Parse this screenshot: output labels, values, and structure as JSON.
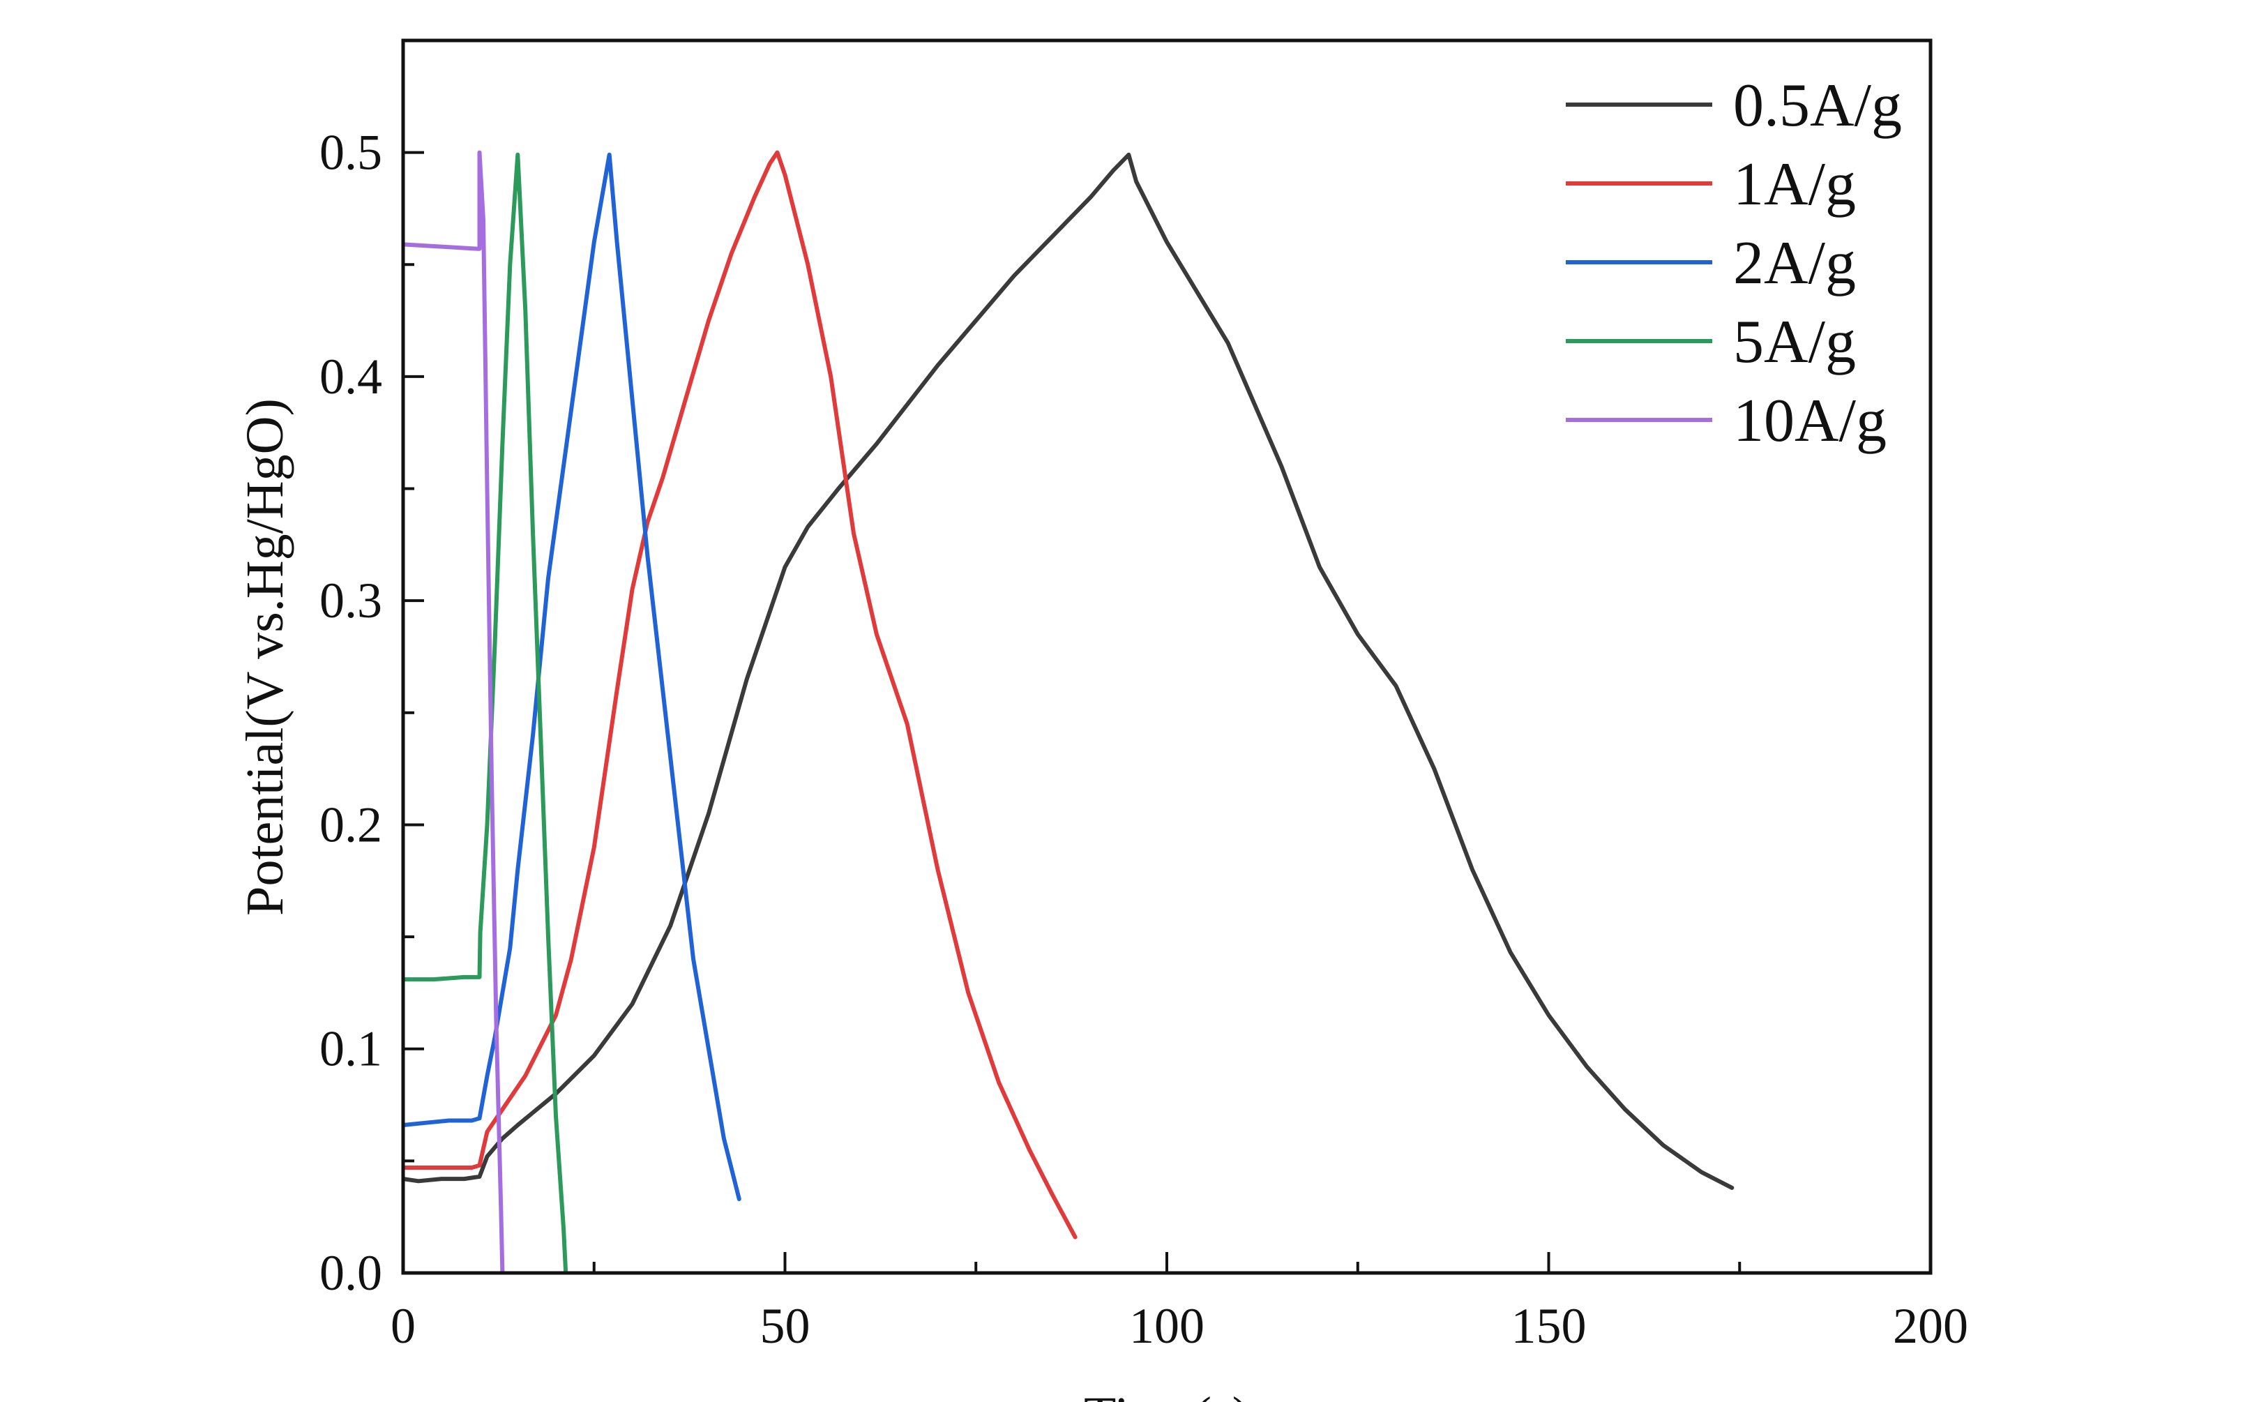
{
  "chart_data": {
    "type": "line",
    "title": "",
    "xlabel": "Time(s)",
    "ylabel": "Potential(V vs.Hg/HgO)",
    "xlim": [
      0,
      200
    ],
    "ylim": [
      0,
      0.55
    ],
    "x_ticks": [
      0,
      50,
      100,
      150,
      200
    ],
    "x_tick_labels": [
      "0",
      "50",
      "100",
      "150",
      "200"
    ],
    "y_ticks": [
      0.0,
      0.1,
      0.2,
      0.3,
      0.4,
      0.5
    ],
    "y_tick_labels": [
      "0.0",
      "0.1",
      "0.2",
      "0.3",
      "0.4",
      "0.5"
    ],
    "grid": false,
    "legend_position": "top-right",
    "series": [
      {
        "name": "0.5A/g",
        "color": "#3a3a3a",
        "points": [
          [
            0,
            0.042
          ],
          [
            2,
            0.041
          ],
          [
            5,
            0.042
          ],
          [
            8,
            0.042
          ],
          [
            10,
            0.043
          ],
          [
            11,
            0.052
          ],
          [
            13,
            0.06
          ],
          [
            15,
            0.066
          ],
          [
            20,
            0.08
          ],
          [
            25,
            0.097
          ],
          [
            30,
            0.12
          ],
          [
            35,
            0.155
          ],
          [
            40,
            0.205
          ],
          [
            45,
            0.265
          ],
          [
            50,
            0.315
          ],
          [
            53,
            0.333
          ],
          [
            57,
            0.35
          ],
          [
            62,
            0.37
          ],
          [
            70,
            0.405
          ],
          [
            80,
            0.445
          ],
          [
            90,
            0.48
          ],
          [
            93,
            0.492
          ],
          [
            95,
            0.499
          ],
          [
            96,
            0.487
          ],
          [
            100,
            0.46
          ],
          [
            108,
            0.415
          ],
          [
            115,
            0.36
          ],
          [
            120,
            0.315
          ],
          [
            125,
            0.285
          ],
          [
            130,
            0.262
          ],
          [
            135,
            0.225
          ],
          [
            140,
            0.18
          ],
          [
            145,
            0.143
          ],
          [
            150,
            0.115
          ],
          [
            155,
            0.092
          ],
          [
            160,
            0.073
          ],
          [
            165,
            0.057
          ],
          [
            170,
            0.045
          ],
          [
            174,
            0.038
          ]
        ]
      },
      {
        "name": "1A/g",
        "color": "#e03a3a",
        "points": [
          [
            0,
            0.047
          ],
          [
            3,
            0.047
          ],
          [
            6,
            0.047
          ],
          [
            9,
            0.047
          ],
          [
            10,
            0.048
          ],
          [
            11,
            0.063
          ],
          [
            13,
            0.073
          ],
          [
            16,
            0.088
          ],
          [
            20,
            0.115
          ],
          [
            22,
            0.14
          ],
          [
            25,
            0.19
          ],
          [
            28,
            0.26
          ],
          [
            30,
            0.305
          ],
          [
            32,
            0.335
          ],
          [
            34,
            0.355
          ],
          [
            37,
            0.39
          ],
          [
            40,
            0.425
          ],
          [
            43,
            0.455
          ],
          [
            46,
            0.48
          ],
          [
            48,
            0.495
          ],
          [
            49,
            0.5
          ],
          [
            50,
            0.49
          ],
          [
            53,
            0.45
          ],
          [
            56,
            0.4
          ],
          [
            59,
            0.33
          ],
          [
            62,
            0.285
          ],
          [
            66,
            0.245
          ],
          [
            70,
            0.18
          ],
          [
            74,
            0.125
          ],
          [
            78,
            0.085
          ],
          [
            82,
            0.055
          ],
          [
            85,
            0.035
          ],
          [
            88,
            0.016
          ]
        ]
      },
      {
        "name": "2A/g",
        "color": "#1f63d6",
        "points": [
          [
            0,
            0.066
          ],
          [
            3,
            0.067
          ],
          [
            6,
            0.068
          ],
          [
            9,
            0.068
          ],
          [
            10,
            0.069
          ],
          [
            11,
            0.088
          ],
          [
            12,
            0.105
          ],
          [
            13,
            0.125
          ],
          [
            14,
            0.145
          ],
          [
            15,
            0.18
          ],
          [
            17,
            0.24
          ],
          [
            19,
            0.31
          ],
          [
            21,
            0.36
          ],
          [
            23,
            0.41
          ],
          [
            25,
            0.46
          ],
          [
            27,
            0.499
          ],
          [
            28,
            0.46
          ],
          [
            30,
            0.39
          ],
          [
            32,
            0.32
          ],
          [
            34,
            0.26
          ],
          [
            36,
            0.2
          ],
          [
            38,
            0.14
          ],
          [
            40,
            0.1
          ],
          [
            42,
            0.06
          ],
          [
            44,
            0.033
          ]
        ]
      },
      {
        "name": "5A/g",
        "color": "#2c9a5a",
        "points": [
          [
            0,
            0.131
          ],
          [
            4,
            0.131
          ],
          [
            8,
            0.132
          ],
          [
            10,
            0.132
          ],
          [
            10.1,
            0.152
          ],
          [
            11,
            0.2
          ],
          [
            12,
            0.28
          ],
          [
            13,
            0.37
          ],
          [
            14,
            0.45
          ],
          [
            15,
            0.499
          ],
          [
            16,
            0.43
          ],
          [
            17,
            0.33
          ],
          [
            18,
            0.24
          ],
          [
            19,
            0.15
          ],
          [
            20,
            0.07
          ],
          [
            21,
            0.02
          ],
          [
            21.3,
            0
          ]
        ]
      },
      {
        "name": "10A/g",
        "color": "#a56ee0",
        "points": [
          [
            0,
            0.459
          ],
          [
            5,
            0.458
          ],
          [
            9.8,
            0.457
          ],
          [
            10,
            0.457
          ],
          [
            10,
            0.5
          ],
          [
            10.5,
            0.47
          ],
          [
            11,
            0.35
          ],
          [
            11.6,
            0.22
          ],
          [
            12.2,
            0.11
          ],
          [
            12.8,
            0.03
          ],
          [
            13,
            0
          ]
        ]
      }
    ]
  }
}
